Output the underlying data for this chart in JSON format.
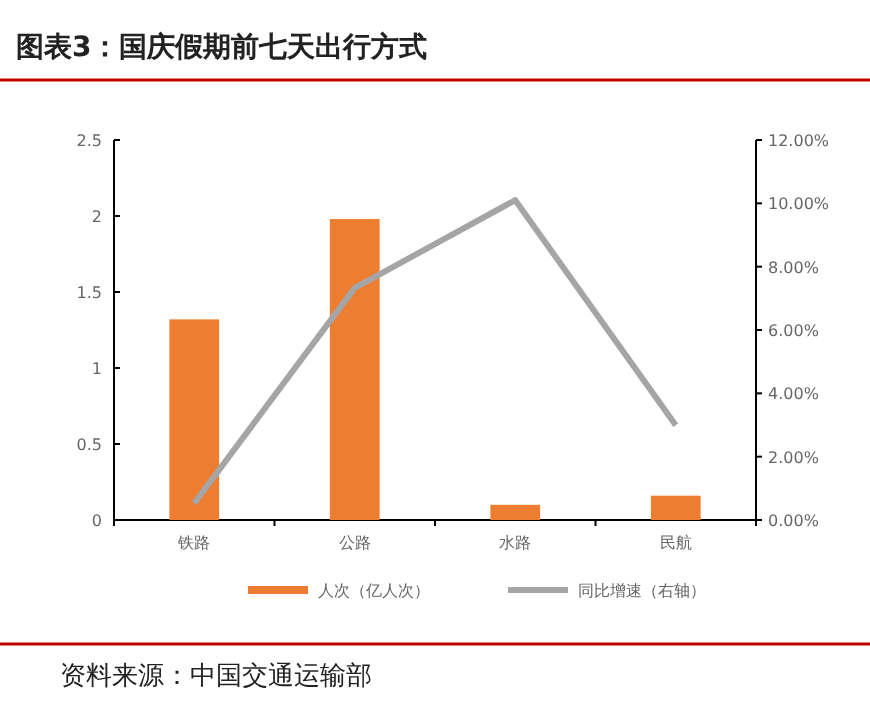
{
  "chart_data": {
    "type": "bar",
    "title": "图表3：国庆假期前七天出行方式",
    "categories": [
      "铁路",
      "公路",
      "水路",
      "民航"
    ],
    "series": [
      {
        "name": "人次（亿人次）",
        "color": "#ed7d31",
        "values": [
          1.32,
          1.98,
          0.1,
          0.16
        ]
      },
      {
        "name": "同比增速（右轴）",
        "type": "line",
        "axis": "y2",
        "color": "#a5a5a5",
        "values": [
          0.53,
          7.33,
          10.1,
          2.99
        ]
      }
    ],
    "ylim": [
      0,
      2.5
    ],
    "yticks": [
      0,
      0.5,
      1,
      1.5,
      2,
      2.5
    ],
    "y2lim": [
      0,
      12
    ],
    "y2ticks": [
      {
        "value": 0,
        "label": "0.00%"
      },
      {
        "value": 2,
        "label": "2.00%"
      },
      {
        "value": 4,
        "label": "4.00%"
      },
      {
        "value": 6,
        "label": "6.00%"
      },
      {
        "value": 8,
        "label": "8.00%"
      },
      {
        "value": 10,
        "label": "10.00%"
      },
      {
        "value": 12,
        "label": "12.00%"
      }
    ],
    "legend": "bottom",
    "grid": false,
    "annotations": [
      "资料来源：中国交通运输部"
    ]
  }
}
